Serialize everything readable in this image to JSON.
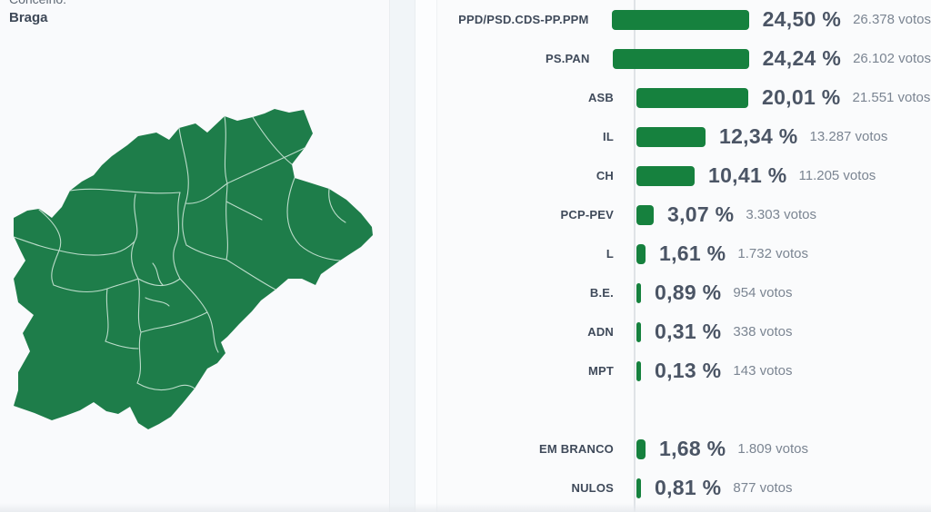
{
  "header": {
    "label": "Concelho:",
    "value": "Braga"
  },
  "map": {
    "region": "Braga",
    "fill_color": "#1e7d4a",
    "border_color": "#cde7d8"
  },
  "chart_data": {
    "type": "bar",
    "orientation": "horizontal",
    "value_unit": "%",
    "bar_color": "#16813e",
    "axis_color": "#dfe3e7",
    "legend_position": "none",
    "grid": false,
    "xlim": [
      0,
      25
    ],
    "results": [
      {
        "label": "PPD/PSD.CDS-PP.PPM",
        "percent": 24.5,
        "percent_display": "24,50 %",
        "votes": 26378,
        "votes_display": "26.378 votos"
      },
      {
        "label": "PS.PAN",
        "percent": 24.24,
        "percent_display": "24,24 %",
        "votes": 26102,
        "votes_display": "26.102 votos"
      },
      {
        "label": "ASB",
        "percent": 20.01,
        "percent_display": "20,01 %",
        "votes": 21551,
        "votes_display": "21.551 votos"
      },
      {
        "label": "IL",
        "percent": 12.34,
        "percent_display": "12,34 %",
        "votes": 13287,
        "votes_display": "13.287 votos"
      },
      {
        "label": "CH",
        "percent": 10.41,
        "percent_display": "10,41 %",
        "votes": 11205,
        "votes_display": "11.205 votos"
      },
      {
        "label": "PCP-PEV",
        "percent": 3.07,
        "percent_display": "3,07 %",
        "votes": 3303,
        "votes_display": "3.303 votos"
      },
      {
        "label": "L",
        "percent": 1.61,
        "percent_display": "1,61 %",
        "votes": 1732,
        "votes_display": "1.732 votos"
      },
      {
        "label": "B.E.",
        "percent": 0.89,
        "percent_display": "0,89 %",
        "votes": 954,
        "votes_display": "954 votos"
      },
      {
        "label": "ADN",
        "percent": 0.31,
        "percent_display": "0,31 %",
        "votes": 338,
        "votes_display": "338 votos"
      },
      {
        "label": "MPT",
        "percent": 0.13,
        "percent_display": "0,13 %",
        "votes": 143,
        "votes_display": "143 votos"
      }
    ],
    "summary": [
      {
        "label": "EM BRANCO",
        "percent": 1.68,
        "percent_display": "1,68 %",
        "votes": 1809,
        "votes_display": "1.809 votos"
      },
      {
        "label": "NULOS",
        "percent": 0.81,
        "percent_display": "0,81 %",
        "votes": 877,
        "votes_display": "877 votos"
      }
    ]
  }
}
